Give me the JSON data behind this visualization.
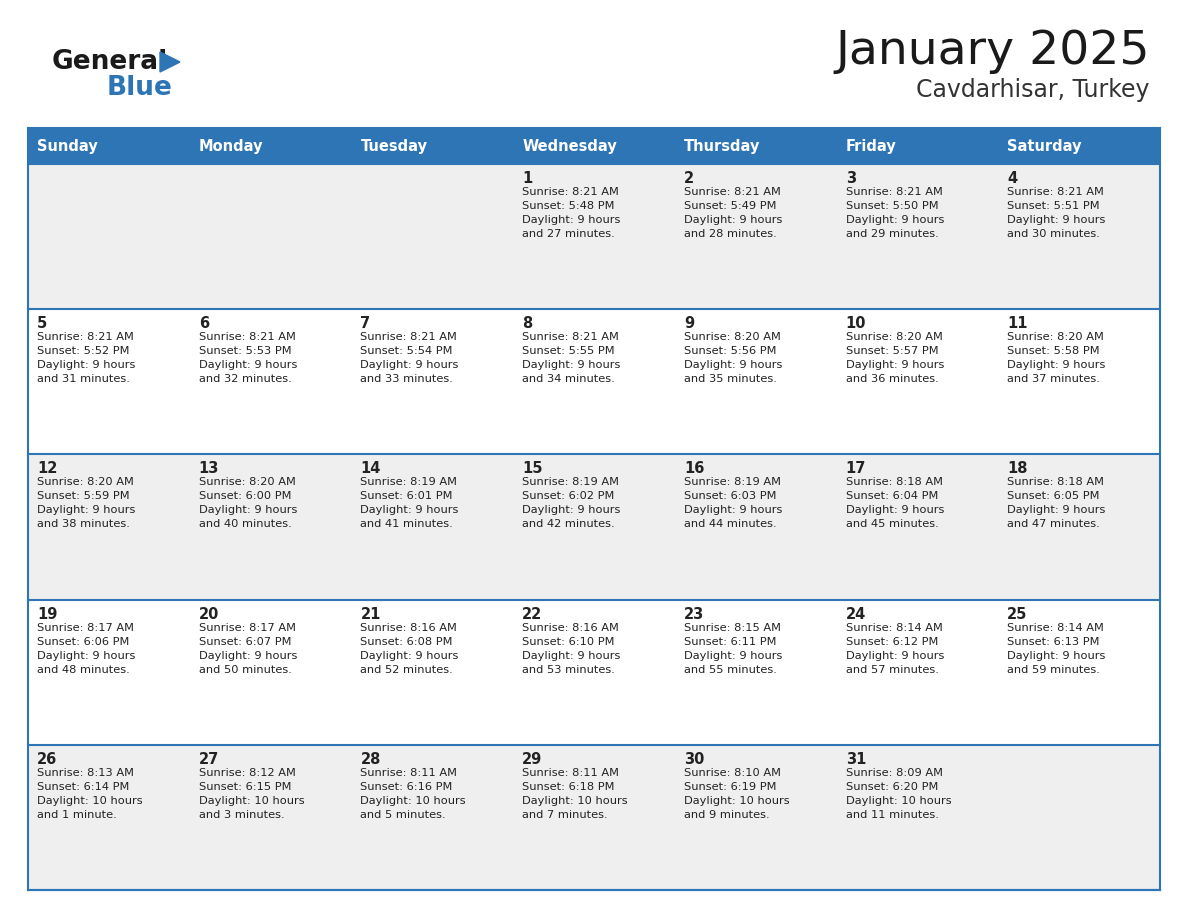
{
  "title": "January 2025",
  "subtitle": "Cavdarhisar, Turkey",
  "header_bg": "#2E75B6",
  "header_text_color": "#FFFFFF",
  "day_names": [
    "Sunday",
    "Monday",
    "Tuesday",
    "Wednesday",
    "Thursday",
    "Friday",
    "Saturday"
  ],
  "odd_row_bg": "#EFEFEF",
  "even_row_bg": "#FFFFFF",
  "cell_border_color": "#2E75B6",
  "text_color": "#222222",
  "logo_general_color": "#1a1a1a",
  "logo_blue_color": "#2E75B6",
  "weeks": [
    [
      {
        "day": null,
        "info": null
      },
      {
        "day": null,
        "info": null
      },
      {
        "day": null,
        "info": null
      },
      {
        "day": 1,
        "info": "Sunrise: 8:21 AM\nSunset: 5:48 PM\nDaylight: 9 hours\nand 27 minutes."
      },
      {
        "day": 2,
        "info": "Sunrise: 8:21 AM\nSunset: 5:49 PM\nDaylight: 9 hours\nand 28 minutes."
      },
      {
        "day": 3,
        "info": "Sunrise: 8:21 AM\nSunset: 5:50 PM\nDaylight: 9 hours\nand 29 minutes."
      },
      {
        "day": 4,
        "info": "Sunrise: 8:21 AM\nSunset: 5:51 PM\nDaylight: 9 hours\nand 30 minutes."
      }
    ],
    [
      {
        "day": 5,
        "info": "Sunrise: 8:21 AM\nSunset: 5:52 PM\nDaylight: 9 hours\nand 31 minutes."
      },
      {
        "day": 6,
        "info": "Sunrise: 8:21 AM\nSunset: 5:53 PM\nDaylight: 9 hours\nand 32 minutes."
      },
      {
        "day": 7,
        "info": "Sunrise: 8:21 AM\nSunset: 5:54 PM\nDaylight: 9 hours\nand 33 minutes."
      },
      {
        "day": 8,
        "info": "Sunrise: 8:21 AM\nSunset: 5:55 PM\nDaylight: 9 hours\nand 34 minutes."
      },
      {
        "day": 9,
        "info": "Sunrise: 8:20 AM\nSunset: 5:56 PM\nDaylight: 9 hours\nand 35 minutes."
      },
      {
        "day": 10,
        "info": "Sunrise: 8:20 AM\nSunset: 5:57 PM\nDaylight: 9 hours\nand 36 minutes."
      },
      {
        "day": 11,
        "info": "Sunrise: 8:20 AM\nSunset: 5:58 PM\nDaylight: 9 hours\nand 37 minutes."
      }
    ],
    [
      {
        "day": 12,
        "info": "Sunrise: 8:20 AM\nSunset: 5:59 PM\nDaylight: 9 hours\nand 38 minutes."
      },
      {
        "day": 13,
        "info": "Sunrise: 8:20 AM\nSunset: 6:00 PM\nDaylight: 9 hours\nand 40 minutes."
      },
      {
        "day": 14,
        "info": "Sunrise: 8:19 AM\nSunset: 6:01 PM\nDaylight: 9 hours\nand 41 minutes."
      },
      {
        "day": 15,
        "info": "Sunrise: 8:19 AM\nSunset: 6:02 PM\nDaylight: 9 hours\nand 42 minutes."
      },
      {
        "day": 16,
        "info": "Sunrise: 8:19 AM\nSunset: 6:03 PM\nDaylight: 9 hours\nand 44 minutes."
      },
      {
        "day": 17,
        "info": "Sunrise: 8:18 AM\nSunset: 6:04 PM\nDaylight: 9 hours\nand 45 minutes."
      },
      {
        "day": 18,
        "info": "Sunrise: 8:18 AM\nSunset: 6:05 PM\nDaylight: 9 hours\nand 47 minutes."
      }
    ],
    [
      {
        "day": 19,
        "info": "Sunrise: 8:17 AM\nSunset: 6:06 PM\nDaylight: 9 hours\nand 48 minutes."
      },
      {
        "day": 20,
        "info": "Sunrise: 8:17 AM\nSunset: 6:07 PM\nDaylight: 9 hours\nand 50 minutes."
      },
      {
        "day": 21,
        "info": "Sunrise: 8:16 AM\nSunset: 6:08 PM\nDaylight: 9 hours\nand 52 minutes."
      },
      {
        "day": 22,
        "info": "Sunrise: 8:16 AM\nSunset: 6:10 PM\nDaylight: 9 hours\nand 53 minutes."
      },
      {
        "day": 23,
        "info": "Sunrise: 8:15 AM\nSunset: 6:11 PM\nDaylight: 9 hours\nand 55 minutes."
      },
      {
        "day": 24,
        "info": "Sunrise: 8:14 AM\nSunset: 6:12 PM\nDaylight: 9 hours\nand 57 minutes."
      },
      {
        "day": 25,
        "info": "Sunrise: 8:14 AM\nSunset: 6:13 PM\nDaylight: 9 hours\nand 59 minutes."
      }
    ],
    [
      {
        "day": 26,
        "info": "Sunrise: 8:13 AM\nSunset: 6:14 PM\nDaylight: 10 hours\nand 1 minute."
      },
      {
        "day": 27,
        "info": "Sunrise: 8:12 AM\nSunset: 6:15 PM\nDaylight: 10 hours\nand 3 minutes."
      },
      {
        "day": 28,
        "info": "Sunrise: 8:11 AM\nSunset: 6:16 PM\nDaylight: 10 hours\nand 5 minutes."
      },
      {
        "day": 29,
        "info": "Sunrise: 8:11 AM\nSunset: 6:18 PM\nDaylight: 10 hours\nand 7 minutes."
      },
      {
        "day": 30,
        "info": "Sunrise: 8:10 AM\nSunset: 6:19 PM\nDaylight: 10 hours\nand 9 minutes."
      },
      {
        "day": 31,
        "info": "Sunrise: 8:09 AM\nSunset: 6:20 PM\nDaylight: 10 hours\nand 11 minutes."
      },
      {
        "day": null,
        "info": null
      }
    ]
  ]
}
